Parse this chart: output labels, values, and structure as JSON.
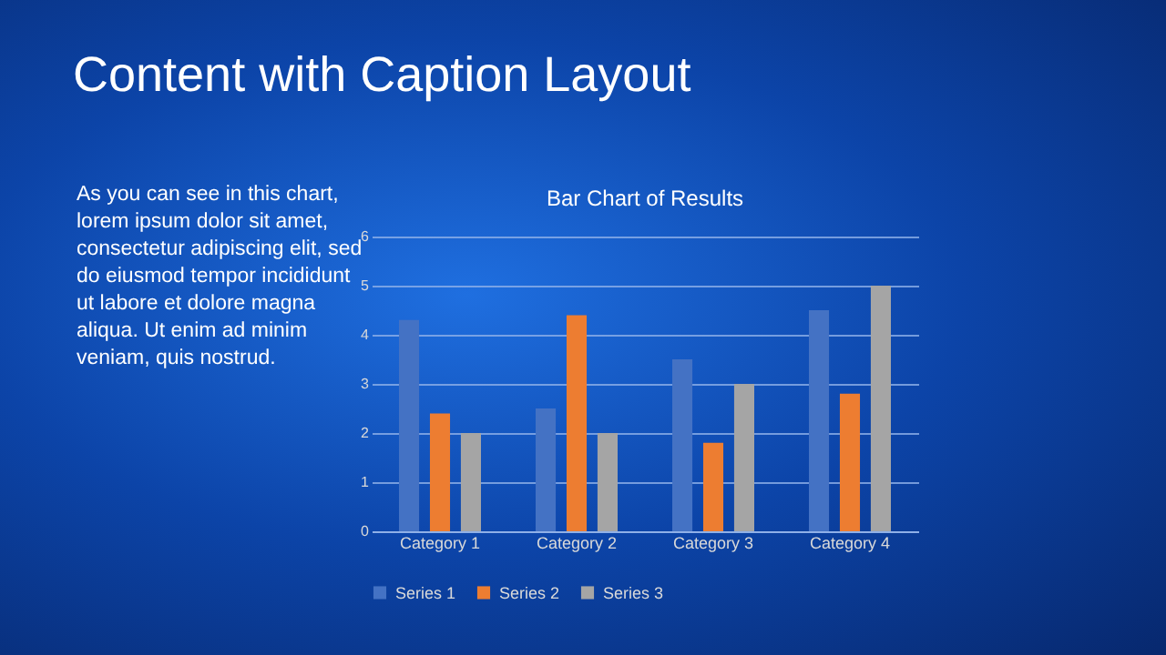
{
  "chart_data": {
    "type": "bar",
    "title": "Content with Caption Layout",
    "subtitle": "Bar Chart of Results",
    "annotations": [
      "As you can see in this chart, lorem ipsum dolor sit amet, consectetur adipiscing elit, sed do eiusmod tempor incididunt ut labore et dolore magna aliqua. Ut enim ad minim veniam, quis nostrud."
    ],
    "categories": [
      "Category 1",
      "Category 2",
      "Category 3",
      "Category 4"
    ],
    "series": [
      {
        "name": "Series 1",
        "color": "#4472c4",
        "values": [
          4.3,
          2.5,
          3.5,
          4.5
        ]
      },
      {
        "name": "Series 2",
        "color": "#ed7d31",
        "values": [
          2.4,
          4.4,
          1.8,
          2.8
        ]
      },
      {
        "name": "Series 3",
        "color": "#a5a5a5",
        "values": [
          2,
          2,
          3,
          5
        ]
      }
    ],
    "ylim": [
      0,
      6
    ],
    "yticks": [
      0,
      1,
      2,
      3,
      4,
      5,
      6
    ],
    "grid": "y",
    "legend": "bottom"
  }
}
